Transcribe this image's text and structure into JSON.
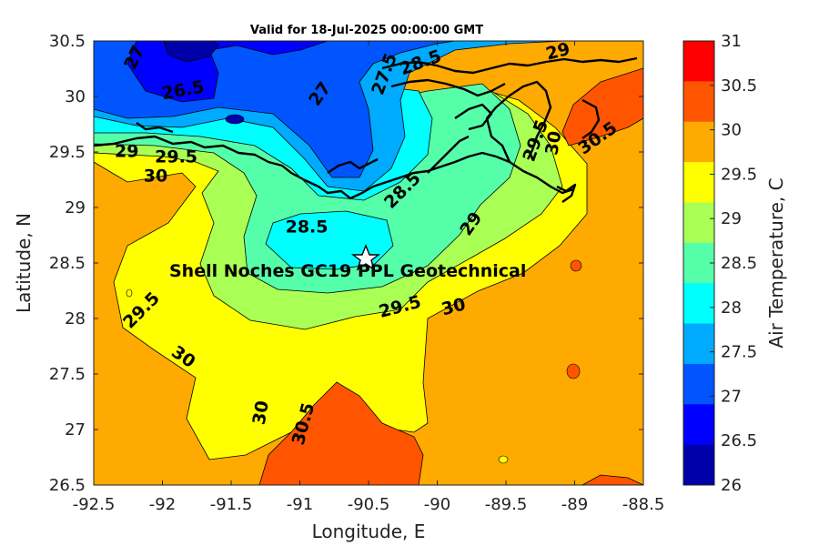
{
  "title": "Valid for 18-Jul-2025 00:00:00 GMT",
  "xlabel": "Longitude, E",
  "ylabel": "Latitude, N",
  "colorbar_label": "Air Temperature, C",
  "x_ticks": [
    "-92.5",
    "-92",
    "-91.5",
    "-91",
    "-90.5",
    "-90",
    "-89.5",
    "-89",
    "-88.5"
  ],
  "y_ticks": [
    "30.5",
    "30",
    "29.5",
    "29",
    "28.5",
    "28",
    "27.5",
    "27",
    "26.5"
  ],
  "colorbar_ticks": [
    "31",
    "30.5",
    "30",
    "29.5",
    "29",
    "28.5",
    "28",
    "27.5",
    "27",
    "26.5",
    "26"
  ],
  "colorbar_colors": [
    "#ff0000",
    "#ff5500",
    "#ffaa00",
    "#ffff00",
    "#aaff55",
    "#55ffaa",
    "#00ffff",
    "#00aaff",
    "#0055ff",
    "#0000ff",
    "#0000aa"
  ],
  "annotation": "Shell Noches   GC19 PPL  Geotechnical",
  "contour_labels": [
    {
      "id": "cl-27a",
      "text": "27",
      "lon": -92.2,
      "lat": 30.35,
      "rot": -65
    },
    {
      "id": "cl-265",
      "text": "26.5",
      "lon": -91.85,
      "lat": 30.05,
      "rot": -10
    },
    {
      "id": "cl-27b",
      "text": "27",
      "lon": -90.85,
      "lat": 30.02,
      "rot": -55
    },
    {
      "id": "cl-275",
      "text": "27.5",
      "lon": -90.38,
      "lat": 30.2,
      "rot": -70
    },
    {
      "id": "cl-285a",
      "text": "28.5",
      "lon": -90.12,
      "lat": 30.3,
      "rot": -20
    },
    {
      "id": "cl-29a",
      "text": "29",
      "lon": -89.12,
      "lat": 30.4,
      "rot": -15
    },
    {
      "id": "cl-29b",
      "text": "29",
      "lon": -92.26,
      "lat": 29.5,
      "rot": 0
    },
    {
      "id": "cl-295a",
      "text": "29.5",
      "lon": -91.9,
      "lat": 29.45,
      "rot": 0
    },
    {
      "id": "cl-30a",
      "text": "30",
      "lon": -92.05,
      "lat": 29.28,
      "rot": 0
    },
    {
      "id": "cl-295b",
      "text": "29.5",
      "lon": -89.28,
      "lat": 29.6,
      "rot": -70
    },
    {
      "id": "cl-30b",
      "text": "30",
      "lon": -89.15,
      "lat": 29.58,
      "rot": -80
    },
    {
      "id": "cl-305a",
      "text": "30.5",
      "lon": -88.83,
      "lat": 29.62,
      "rot": -35
    },
    {
      "id": "cl-285b",
      "text": "28.5",
      "lon": -90.25,
      "lat": 29.15,
      "rot": -45
    },
    {
      "id": "cl-285c",
      "text": "28.5",
      "lon": -90.95,
      "lat": 28.82,
      "rot": 0
    },
    {
      "id": "cl-29c",
      "text": "29",
      "lon": -89.75,
      "lat": 28.85,
      "rot": -55
    },
    {
      "id": "cl-295c",
      "text": "29.5",
      "lon": -92.15,
      "lat": 28.07,
      "rot": -45
    },
    {
      "id": "cl-295d",
      "text": "29.5",
      "lon": -90.27,
      "lat": 28.1,
      "rot": -15
    },
    {
      "id": "cl-30c",
      "text": "30",
      "lon": -89.88,
      "lat": 28.1,
      "rot": -15
    },
    {
      "id": "cl-30d",
      "text": "30",
      "lon": -91.85,
      "lat": 27.65,
      "rot": 35
    },
    {
      "id": "cl-30e",
      "text": "30",
      "lon": -91.28,
      "lat": 27.15,
      "rot": -80
    },
    {
      "id": "cl-305b",
      "text": "30.5",
      "lon": -90.97,
      "lat": 27.05,
      "rot": -75
    }
  ]
}
